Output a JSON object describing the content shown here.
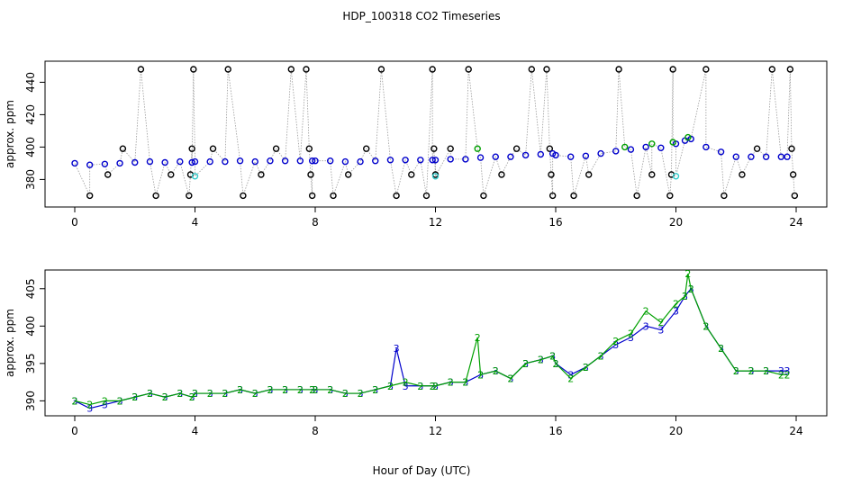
{
  "title": "HDP_100318  CO2 Timeseries",
  "xlabel": "Hour of Day (UTC)",
  "colors": {
    "black": "#000000",
    "blue": "#0000cc",
    "green": "#00a000",
    "cyan": "#33cccc",
    "grey": "#9a9a9a"
  },
  "chart_data": [
    {
      "type": "scatter",
      "title": "",
      "xlabel": "",
      "ylabel": "approx. ppm",
      "xlim": [
        0,
        24
      ],
      "ylim": [
        363,
        453
      ],
      "xticks": [
        0,
        4,
        8,
        12,
        16,
        20,
        24
      ],
      "yticks": [
        380,
        400,
        420,
        440
      ],
      "grid": false,
      "series": [
        {
          "color": "#000000",
          "symbol": "o",
          "x": [
            0.5,
            1.1,
            1.6,
            2.2,
            2.7,
            3.2,
            3.8,
            3.85,
            3.9,
            3.95,
            4.6,
            5.1,
            5.6,
            6.2,
            6.7,
            7.2,
            7.7,
            7.8,
            7.85,
            7.9,
            8.6,
            9.1,
            9.7,
            10.2,
            10.7,
            11.2,
            11.7,
            11.9,
            11.95,
            12.0,
            12.5,
            13.1,
            13.6,
            14.2,
            14.7,
            15.2,
            15.7,
            15.8,
            15.85,
            15.9,
            16.6,
            17.1,
            18.1,
            18.7,
            19.2,
            19.8,
            19.85,
            19.9,
            21.0,
            21.6,
            22.2,
            22.7,
            23.2,
            23.8,
            23.85,
            23.9,
            23.95
          ],
          "y": [
            370,
            383,
            399,
            448,
            370,
            383,
            370,
            383,
            399,
            448,
            399,
            448,
            370,
            383,
            399,
            448,
            448,
            399,
            383,
            370,
            370,
            383,
            399,
            448,
            370,
            383,
            370,
            448,
            399,
            383,
            399,
            448,
            370,
            383,
            399,
            448,
            448,
            399,
            383,
            370,
            370,
            383,
            448,
            370,
            383,
            370,
            383,
            448,
            448,
            370,
            383,
            399,
            448,
            448,
            399,
            383,
            370
          ]
        },
        {
          "color": "#0000cc",
          "symbol": "o",
          "x": [
            0.0,
            0.5,
            1.0,
            1.5,
            2.0,
            2.5,
            3.0,
            3.5,
            3.9,
            4.0,
            4.5,
            5.0,
            5.5,
            6.0,
            6.5,
            7.0,
            7.5,
            7.9,
            8.0,
            8.5,
            9.0,
            9.5,
            10.0,
            10.5,
            11.0,
            11.5,
            11.9,
            12.0,
            12.5,
            13.0,
            13.5,
            14.0,
            14.5,
            15.0,
            15.5,
            15.9,
            16.0,
            16.5,
            17.0,
            17.5,
            18.0,
            18.5,
            19.0,
            19.5,
            20.0,
            20.3,
            20.5,
            21.0,
            21.5,
            22.0,
            22.5,
            23.0,
            23.5,
            23.7
          ],
          "y": [
            390,
            389,
            389.5,
            390,
            390.5,
            391,
            390.5,
            391,
            390.5,
            391,
            391,
            391,
            391.5,
            391,
            391.5,
            391.5,
            391.5,
            391.5,
            391.5,
            391.5,
            391,
            391,
            391.5,
            392,
            392,
            392,
            392,
            392,
            392.5,
            392.5,
            393.5,
            394,
            394,
            395,
            395.5,
            396,
            395,
            394,
            394.5,
            396,
            397.5,
            398.5,
            400,
            399.5,
            402,
            404,
            405,
            400,
            397,
            394,
            394,
            394,
            394,
            394
          ]
        },
        {
          "color": "#00a000",
          "symbol": "o",
          "x": [
            13.4,
            18.3,
            19.2,
            19.9,
            20.4
          ],
          "y": [
            399,
            400,
            402,
            403,
            406
          ]
        },
        {
          "color": "#33cccc",
          "symbol": "o",
          "x": [
            4.0,
            12.0,
            20.0
          ],
          "y": [
            382,
            382,
            382
          ]
        }
      ]
    },
    {
      "type": "line",
      "title": "",
      "xlabel": "Hour of Day (UTC)",
      "ylabel": "approx. ppm",
      "xlim": [
        0,
        24
      ],
      "ylim": [
        388,
        407.5
      ],
      "xticks": [
        0,
        4,
        8,
        12,
        16,
        20,
        24
      ],
      "yticks": [
        390,
        395,
        400,
        405
      ],
      "grid": false,
      "series": [
        {
          "marker": "3",
          "color": "#0000cc",
          "x": [
            0.0,
            0.5,
            1.0,
            1.5,
            2.0,
            2.5,
            3.0,
            3.5,
            3.9,
            4.0,
            4.5,
            5.0,
            5.5,
            6.0,
            6.5,
            7.0,
            7.5,
            7.9,
            8.0,
            8.5,
            9.0,
            9.5,
            10.0,
            10.5,
            10.7,
            11.0,
            11.5,
            11.9,
            12.0,
            12.5,
            13.0,
            13.5,
            14.0,
            14.5,
            15.0,
            15.5,
            15.9,
            16.0,
            16.5,
            17.0,
            17.5,
            18.0,
            18.5,
            19.0,
            19.5,
            20.0,
            20.3,
            20.5,
            21.0,
            21.5,
            22.0,
            22.5,
            23.0,
            23.5,
            23.7
          ],
          "y": [
            390,
            389,
            389.5,
            390,
            390.5,
            391,
            390.5,
            391,
            390.5,
            391,
            391,
            391,
            391.5,
            391,
            391.5,
            391.5,
            391.5,
            391.5,
            391.5,
            391.5,
            391,
            391,
            391.5,
            392,
            397,
            392,
            392,
            392,
            392,
            392.5,
            392.5,
            393.5,
            394,
            393,
            395,
            395.5,
            396,
            395,
            393.5,
            394.5,
            396,
            397.5,
            398.5,
            400,
            399.5,
            402,
            404,
            405,
            400,
            397,
            394,
            394,
            394,
            394,
            394
          ]
        },
        {
          "marker": "2",
          "color": "#00a000",
          "x": [
            0.0,
            0.5,
            1.0,
            1.5,
            2.0,
            2.5,
            3.0,
            3.5,
            3.9,
            4.0,
            4.5,
            5.0,
            5.5,
            6.0,
            6.5,
            7.0,
            7.5,
            7.9,
            8.0,
            8.5,
            9.0,
            9.5,
            10.0,
            10.5,
            11.0,
            11.5,
            11.9,
            12.0,
            12.5,
            13.0,
            13.4,
            13.5,
            14.0,
            14.5,
            15.0,
            15.5,
            15.9,
            16.0,
            16.5,
            17.0,
            17.5,
            18.0,
            18.5,
            19.0,
            19.5,
            20.0,
            20.3,
            20.4,
            20.5,
            21.0,
            21.5,
            22.0,
            22.5,
            23.0,
            23.5,
            23.7
          ],
          "y": [
            390,
            389.5,
            390,
            390,
            390.5,
            391,
            390.5,
            391,
            390.5,
            391,
            391,
            391,
            391.5,
            391,
            391.5,
            391.5,
            391.5,
            391.5,
            391.5,
            391.5,
            391,
            391,
            391.5,
            392,
            392.5,
            392,
            392,
            392,
            392.5,
            392.5,
            398.5,
            393.5,
            394,
            393,
            395,
            395.5,
            396,
            395,
            393,
            394.5,
            396,
            398,
            399,
            402,
            400.5,
            403,
            404,
            407,
            405,
            400,
            397,
            394,
            394,
            394,
            393.5,
            393.5
          ]
        }
      ]
    }
  ]
}
